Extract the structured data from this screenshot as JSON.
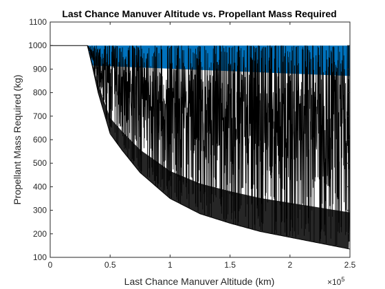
{
  "chart_data": {
    "type": "area",
    "title": "Last Chance Manuver Altitude vs. Propellant Mass Required",
    "xlabel": "Last Chance Manuver Altitude (km)",
    "ylabel": "Propellant Mass Required (kg)",
    "x_exponent_label": "×10",
    "x_exponent_power": "5",
    "xlim": [
      0,
      250000
    ],
    "ylim": [
      100,
      1100
    ],
    "x_ticks": [
      0,
      50000,
      100000,
      150000,
      200000,
      250000
    ],
    "x_tick_labels": [
      "0",
      "0.5",
      "1",
      "1.5",
      "2",
      "2.5"
    ],
    "y_ticks": [
      100,
      200,
      300,
      400,
      500,
      600,
      700,
      800,
      900,
      1000,
      1100
    ],
    "y_tick_labels": [
      "100",
      "200",
      "300",
      "400",
      "500",
      "600",
      "700",
      "800",
      "900",
      "1000",
      "1100"
    ],
    "grid": false,
    "cap_value": 1000,
    "fill_color": "#0072BD",
    "line_color": "#000000",
    "envelope": {
      "x": [
        0,
        31000,
        35000,
        40000,
        50000,
        60000,
        75000,
        100000,
        125000,
        150000,
        175000,
        200000,
        225000,
        250000
      ],
      "y": [
        1000,
        1000,
        915,
        800,
        625,
        555,
        460,
        350,
        285,
        245,
        210,
        185,
        160,
        135
      ]
    }
  }
}
